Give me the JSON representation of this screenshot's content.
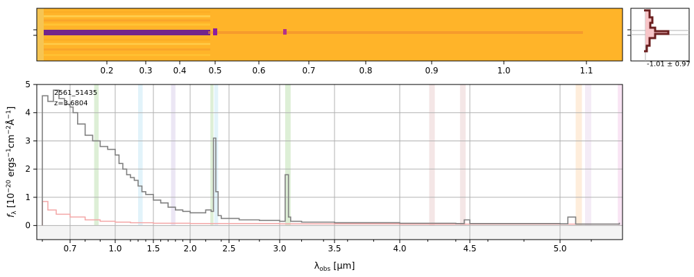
{
  "spectrum2d": {
    "wave_ticks": [
      "0.2",
      "0.3",
      "0.4",
      "0.5",
      "0.6",
      "0.7",
      "0.8",
      "0.9",
      "1.0",
      "1.1"
    ],
    "profile_label": "-1.01 ± 0.97"
  },
  "annotation": {
    "object_id": "2561_51435",
    "redshift": "z=3.6804"
  },
  "chart_data": {
    "type": "line",
    "xlabel": "λ_obs [μm]",
    "ylabel": "f_λ [10^−20 ergs^−1cm^−2Å^−1]",
    "ylim": [
      -0.5,
      5
    ],
    "xlim": [
      0.58,
      5.4
    ],
    "x_ticks": [
      "0.7",
      "1.0",
      "1.5",
      "2.0",
      "2.5",
      "3.0",
      "3.5",
      "4.0",
      "4.5",
      "5.0"
    ],
    "y_ticks": [
      "0",
      "1",
      "2",
      "3",
      "4",
      "5"
    ],
    "grid": true,
    "colors": {
      "flux": "#808080",
      "error": "#f4a6a6",
      "bands": "#c8e6c9"
    },
    "series": [
      {
        "x": [
          0.6,
          0.62,
          0.64,
          0.66,
          0.68,
          0.7,
          0.72,
          0.75,
          0.8,
          0.85,
          0.9,
          0.95,
          1.0,
          1.05,
          1.1,
          1.15,
          1.2,
          1.25,
          1.3,
          1.35,
          1.4,
          1.5,
          1.6,
          1.7,
          1.8,
          1.9,
          2.0,
          2.1,
          2.2,
          2.27,
          2.3,
          2.33,
          2.36,
          2.4,
          2.6,
          2.8,
          3.0,
          3.05,
          3.08,
          3.1,
          3.2,
          3.5,
          4.0,
          4.4,
          4.46,
          4.5,
          5.0,
          5.05,
          5.1,
          5.3,
          5.38
        ],
        "y": [
          4.6,
          4.4,
          4.8,
          4.5,
          4.3,
          4.2,
          4.0,
          3.6,
          3.2,
          3.0,
          2.8,
          2.7,
          2.5,
          2.2,
          2.0,
          1.8,
          1.7,
          1.6,
          1.4,
          1.2,
          1.1,
          0.9,
          0.8,
          0.65,
          0.55,
          0.5,
          0.45,
          0.45,
          0.55,
          0.5,
          3.1,
          1.2,
          0.35,
          0.25,
          0.2,
          0.18,
          0.15,
          1.8,
          0.3,
          0.15,
          0.12,
          0.1,
          0.08,
          0.07,
          0.2,
          0.07,
          0.06,
          0.3,
          0.05,
          0.05,
          0.1
        ]
      },
      {
        "x": [
          0.6,
          0.62,
          0.65,
          0.7,
          0.8,
          0.9,
          1.0,
          1.2,
          1.5,
          2.0,
          3.0,
          4.0,
          5.0,
          5.38
        ],
        "y": [
          0.85,
          0.55,
          0.4,
          0.3,
          0.2,
          0.15,
          0.12,
          0.1,
          0.08,
          0.07,
          0.06,
          0.05,
          0.05,
          0.05
        ]
      }
    ],
    "bands": [
      {
        "x": [
          0.86,
          0.89
        ],
        "color": "#cfe8c5"
      },
      {
        "x": [
          1.3,
          1.36
        ],
        "color": "#d6eef8"
      },
      {
        "x": [
          1.74,
          1.8
        ],
        "color": "#e3dcef"
      },
      {
        "x": [
          2.26,
          2.3
        ],
        "color": "#cfe8c5"
      },
      {
        "x": [
          2.31,
          2.36
        ],
        "color": "#d6eef8"
      },
      {
        "x": [
          3.05,
          3.1
        ],
        "color": "#cfe8c5"
      },
      {
        "x": [
          4.21,
          4.25
        ],
        "color": "#f0dcdc"
      },
      {
        "x": [
          4.43,
          4.47
        ],
        "color": "#f0dcdc"
      },
      {
        "x": [
          5.1,
          5.14
        ],
        "color": "#fde5cc"
      },
      {
        "x": [
          5.16,
          5.2
        ],
        "color": "#efe4f2"
      },
      {
        "x": [
          5.37,
          5.4
        ],
        "color": "#f6d9ef"
      }
    ]
  }
}
